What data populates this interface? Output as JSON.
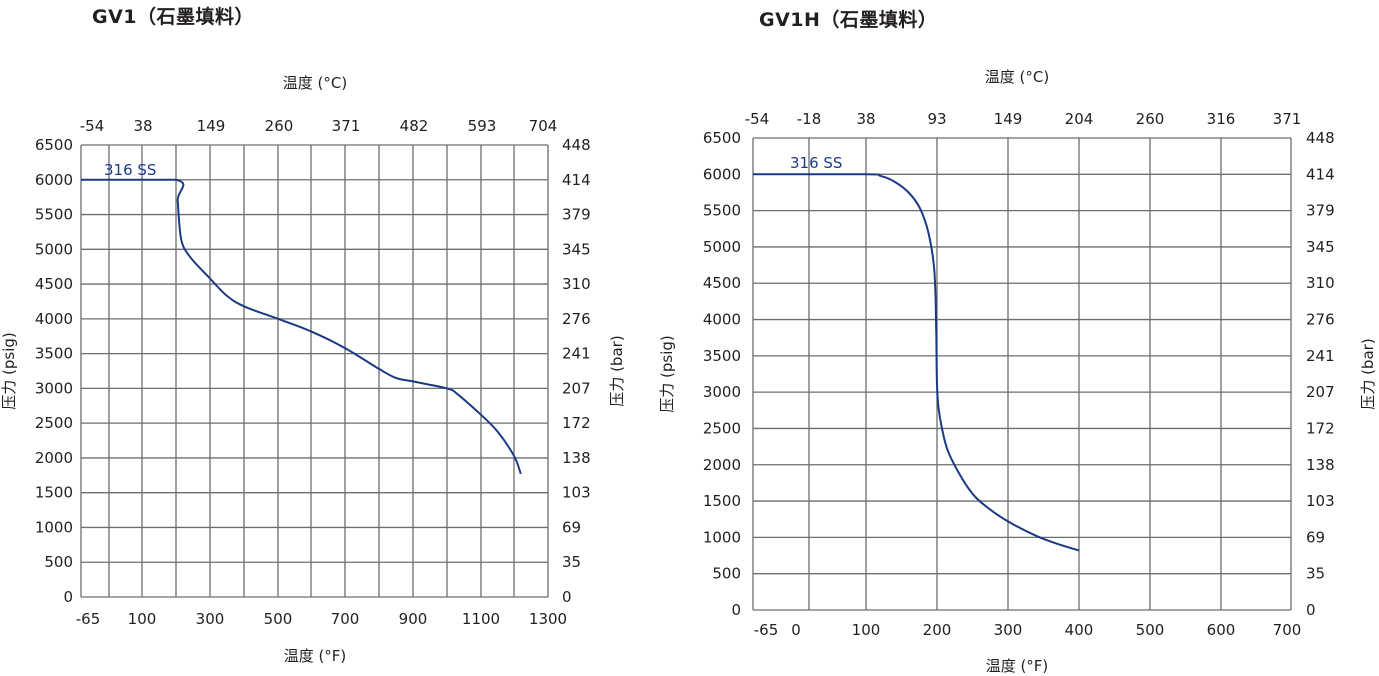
{
  "chart_data": [
    {
      "id": "gv1",
      "type": "line",
      "title": "GV1（石墨填料）",
      "xlabel": "温度 (°F)",
      "x2label": "温度 (°C)",
      "ylabel": "压力 (psig)",
      "y2label": "压力 (bar)",
      "grid": true,
      "xlim": [
        -65,
        1300
      ],
      "ylim": [
        0,
        6500
      ],
      "x_ticks": [
        "-65",
        "100",
        "300",
        "500",
        "700",
        "900",
        "1100",
        "1300"
      ],
      "x_grid": [
        -65,
        0,
        100,
        200,
        300,
        400,
        500,
        600,
        700,
        800,
        900,
        1000,
        1100,
        1200,
        1300
      ],
      "x2_ticks": [
        "-54",
        "38",
        "149",
        "260",
        "371",
        "482",
        "593",
        "704"
      ],
      "y_ticks": [
        "0",
        "500",
        "1000",
        "1500",
        "2000",
        "2500",
        "3000",
        "3500",
        "4000",
        "4500",
        "5000",
        "5500",
        "6000",
        "6500"
      ],
      "y2_ticks": [
        "0",
        "35",
        "69",
        "103",
        "138",
        "172",
        "207",
        "241",
        "276",
        "310",
        "345",
        "379",
        "414",
        "448"
      ],
      "series": [
        {
          "name": "316 SS",
          "color": "#1b3a84",
          "x": [
            -65,
            200,
            205,
            215,
            240,
            300,
            350,
            400,
            500,
            600,
            700,
            800,
            850,
            900,
            1000,
            1030,
            1100,
            1150,
            1200,
            1220
          ],
          "y": [
            6000,
            6000,
            5700,
            5150,
            4900,
            4580,
            4330,
            4180,
            4000,
            3820,
            3580,
            3280,
            3150,
            3100,
            3000,
            2920,
            2620,
            2380,
            2030,
            1770
          ]
        }
      ]
    },
    {
      "id": "gv1h",
      "type": "line",
      "title": "GV1H（石墨填料）",
      "xlabel": "温度 (°F)",
      "x2label": "温度 (°C)",
      "ylabel": "压力 (psig)",
      "y2label": "压力 (bar)",
      "grid": true,
      "xlim": [
        -65,
        700
      ],
      "ylim": [
        0,
        6500
      ],
      "x_ticks": [
        "-65",
        "0",
        "100",
        "200",
        "300",
        "400",
        "500",
        "600",
        "700"
      ],
      "x_grid": [
        -65,
        -18,
        100,
        200,
        300,
        400,
        500,
        600,
        700
      ],
      "x2_ticks": [
        "-54",
        "-18",
        "38",
        "93",
        "149",
        "204",
        "260",
        "316",
        "371"
      ],
      "y_ticks": [
        "0",
        "500",
        "1000",
        "1500",
        "2000",
        "2500",
        "3000",
        "3500",
        "4000",
        "4500",
        "5000",
        "5500",
        "6000",
        "6500"
      ],
      "y2_ticks": [
        "0",
        "35",
        "69",
        "103",
        "138",
        "172",
        "207",
        "241",
        "276",
        "310",
        "345",
        "379",
        "414",
        "448"
      ],
      "series": [
        {
          "name": "316 SS",
          "color": "#1b3a84",
          "x": [
            -65,
            100,
            120,
            140,
            160,
            175,
            185,
            192,
            196,
            198,
            199,
            200,
            202,
            207,
            215,
            230,
            250,
            270,
            300,
            340,
            370,
            400
          ],
          "y": [
            6000,
            6000,
            5980,
            5900,
            5750,
            5550,
            5300,
            5000,
            4700,
            4300,
            3800,
            3100,
            2800,
            2500,
            2200,
            1900,
            1600,
            1420,
            1220,
            1020,
            910,
            820
          ]
        }
      ]
    }
  ]
}
